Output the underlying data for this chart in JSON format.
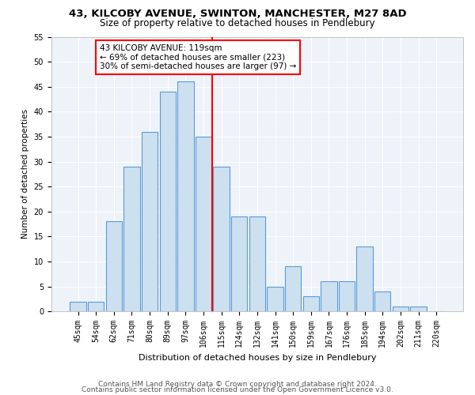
{
  "title1": "43, KILCOBY AVENUE, SWINTON, MANCHESTER, M27 8AD",
  "title2": "Size of property relative to detached houses in Pendlebury",
  "xlabel": "Distribution of detached houses by size in Pendlebury",
  "ylabel": "Number of detached properties",
  "categories": [
    "45sqm",
    "54sqm",
    "62sqm",
    "71sqm",
    "80sqm",
    "89sqm",
    "97sqm",
    "106sqm",
    "115sqm",
    "124sqm",
    "132sqm",
    "141sqm",
    "150sqm",
    "159sqm",
    "167sqm",
    "176sqm",
    "185sqm",
    "194sqm",
    "202sqm",
    "211sqm",
    "220sqm"
  ],
  "values": [
    2,
    2,
    18,
    29,
    36,
    44,
    46,
    35,
    29,
    19,
    19,
    5,
    9,
    3,
    6,
    6,
    13,
    4,
    1,
    1,
    0
  ],
  "bar_color": "#cce0f0",
  "bar_edge_color": "#5b9bd5",
  "red_line_index": 8,
  "annotation_text": "43 KILCOBY AVENUE: 119sqm\n← 69% of detached houses are smaller (223)\n30% of semi-detached houses are larger (97) →",
  "annotation_box_color": "white",
  "annotation_box_edge": "red",
  "red_line_color": "red",
  "ylim": [
    0,
    55
  ],
  "yticks": [
    0,
    5,
    10,
    15,
    20,
    25,
    30,
    35,
    40,
    45,
    50,
    55
  ],
  "footer1": "Contains HM Land Registry data © Crown copyright and database right 2024.",
  "footer2": "Contains public sector information licensed under the Open Government Licence v3.0.",
  "bg_color": "#eef2f9",
  "grid_color": "white",
  "title1_fontsize": 9.5,
  "title2_fontsize": 8.5,
  "xlabel_fontsize": 8,
  "ylabel_fontsize": 7.5,
  "tick_fontsize": 7,
  "annotation_fontsize": 7.5,
  "footer_fontsize": 6.5
}
